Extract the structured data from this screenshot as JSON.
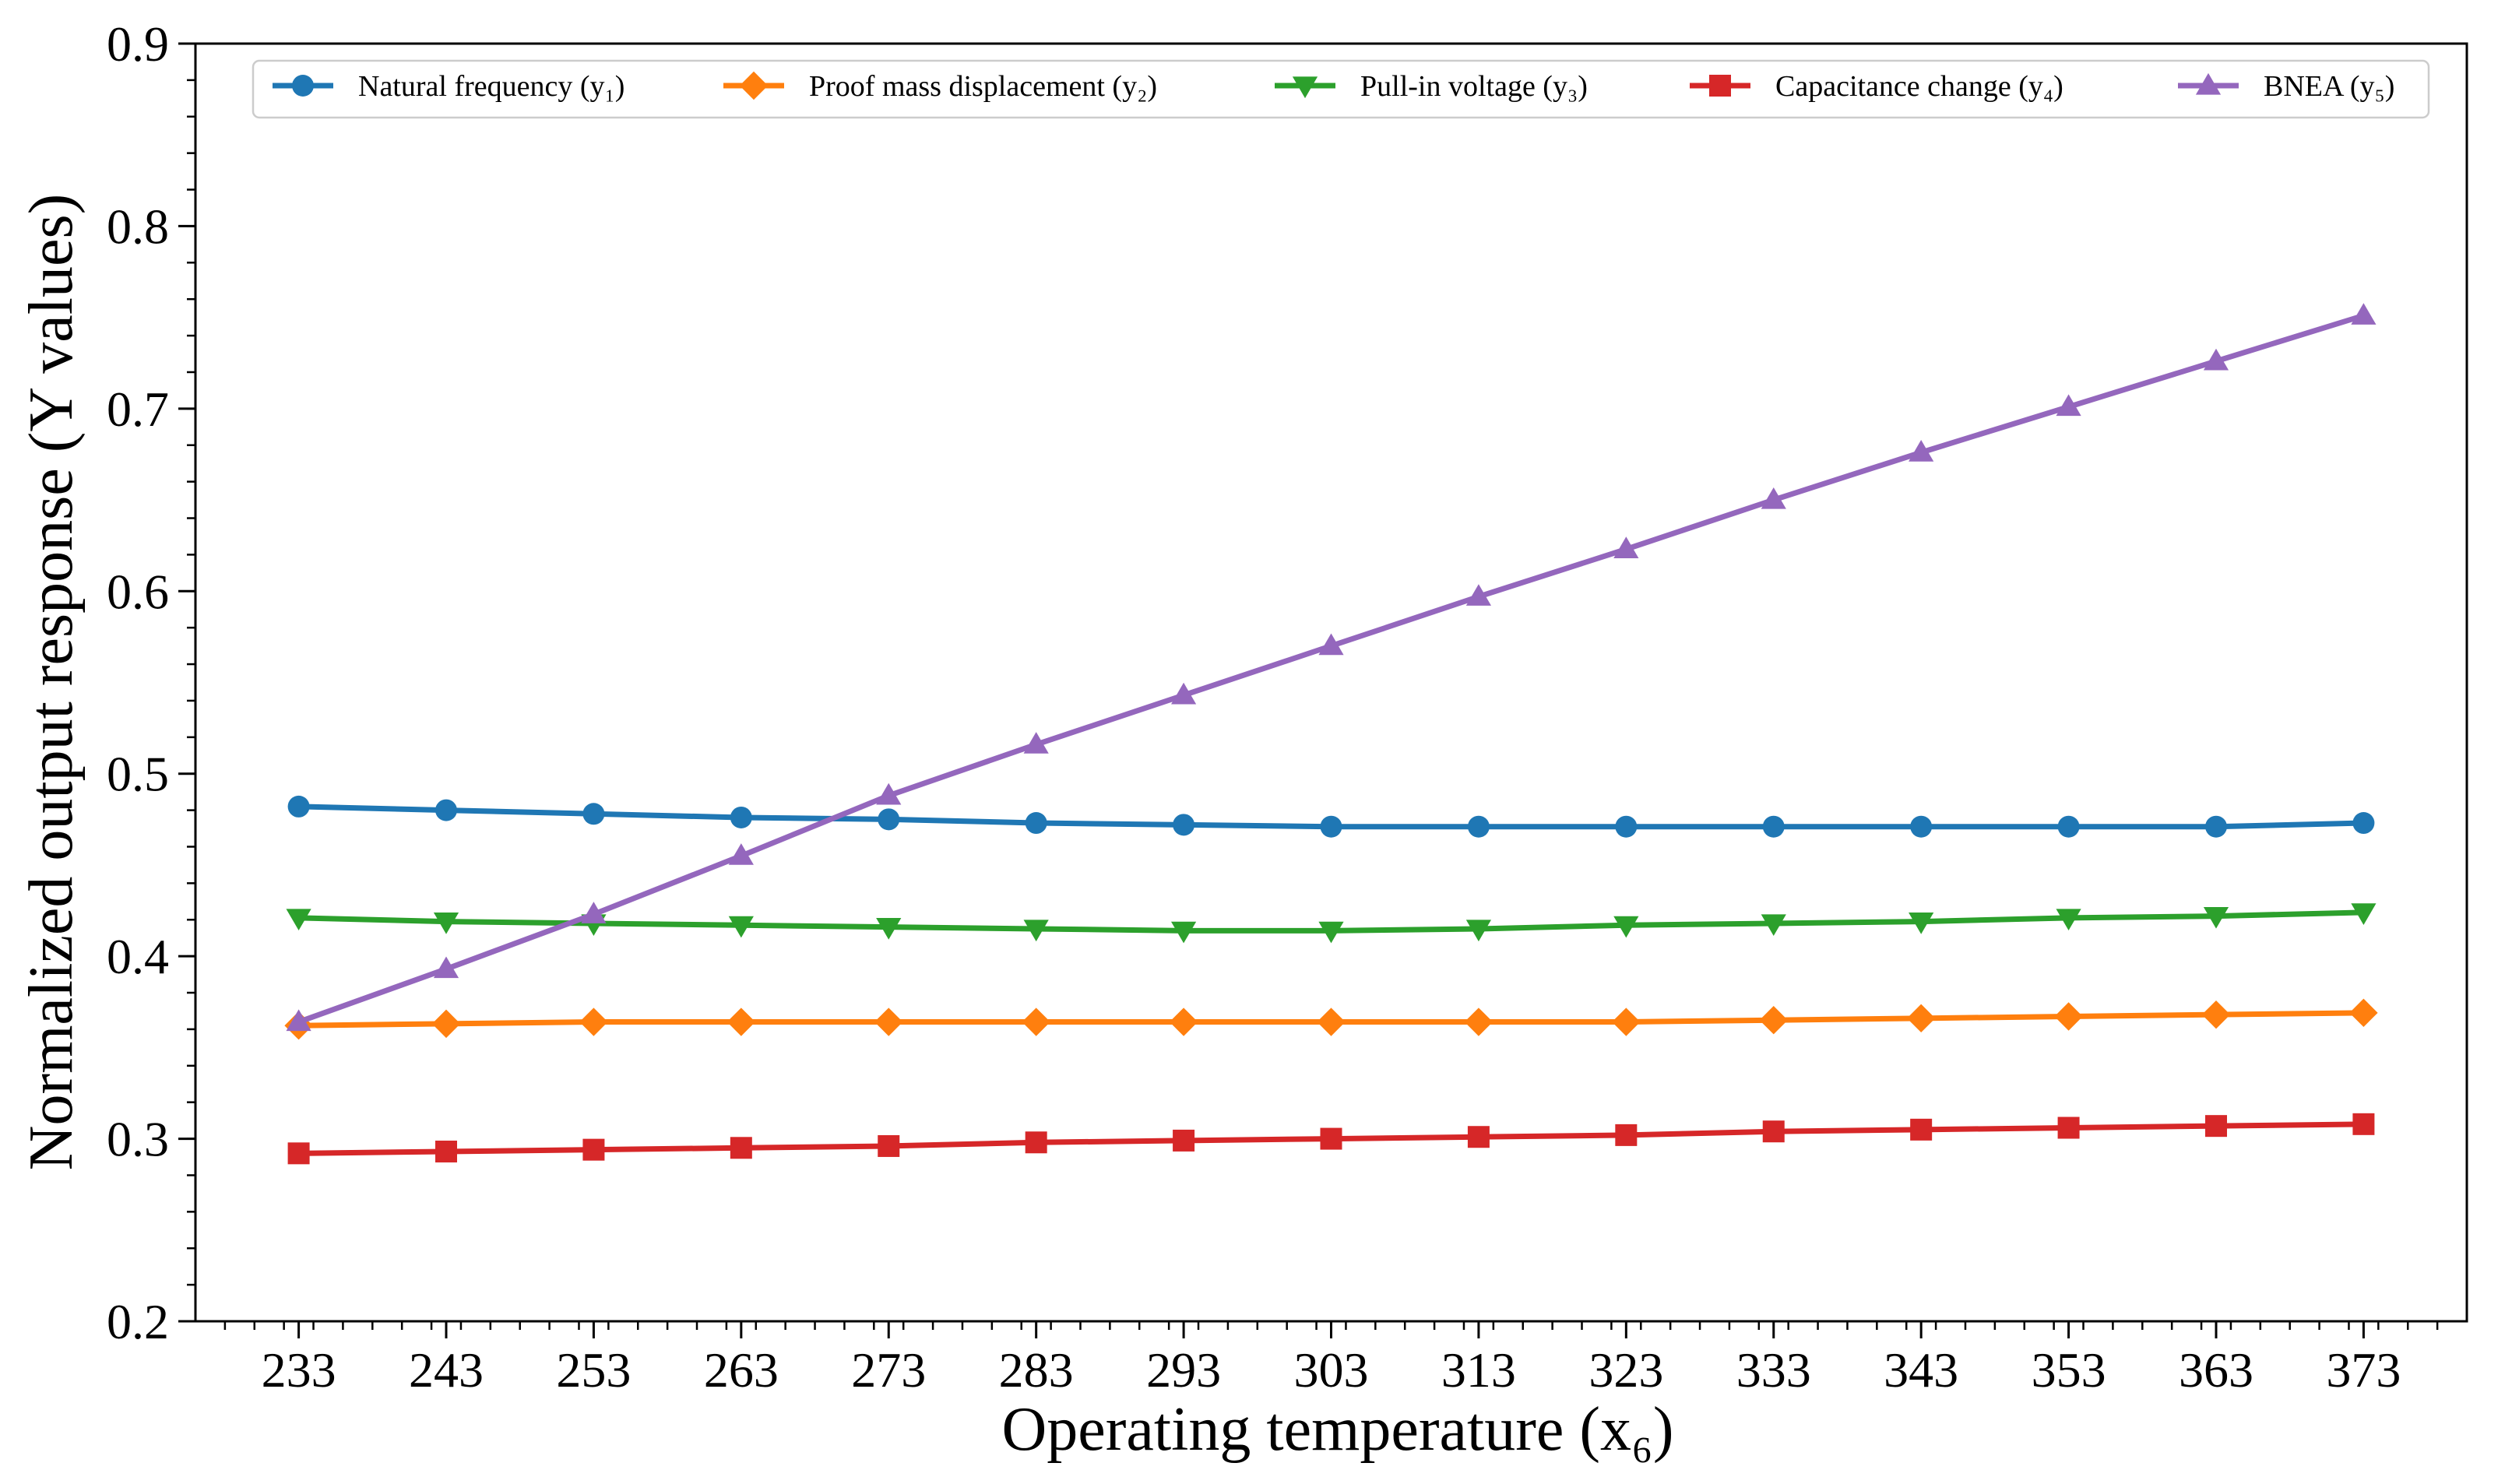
{
  "chart_data": {
    "type": "line",
    "title": "",
    "xlabel": "Operating temperature (x₆)",
    "ylabel": "Normalized output response (Y values)",
    "x": [
      233,
      243,
      253,
      263,
      273,
      283,
      293,
      303,
      313,
      323,
      333,
      343,
      353,
      363,
      373
    ],
    "xlim": [
      226,
      380
    ],
    "ylim": [
      0.2,
      0.9
    ],
    "yticks": [
      0.2,
      0.3,
      0.4,
      0.5,
      0.6,
      0.7,
      0.8,
      0.9
    ],
    "ytick_labels": [
      "0.2",
      "0.3",
      "0.4",
      "0.5",
      "0.6",
      "0.7",
      "0.8",
      "0.9"
    ],
    "xtick_labels": [
      "233",
      "243",
      "253",
      "263",
      "273",
      "283",
      "293",
      "303",
      "313",
      "323",
      "333",
      "343",
      "353",
      "363",
      "373"
    ],
    "grid": false,
    "legend_position": "top",
    "series": [
      {
        "name": "Natural frequency (y₁)",
        "color": "#1f77b4",
        "marker": "circle",
        "values": [
          0.482,
          0.48,
          0.478,
          0.476,
          0.475,
          0.473,
          0.472,
          0.471,
          0.471,
          0.471,
          0.471,
          0.471,
          0.471,
          0.471,
          0.473
        ]
      },
      {
        "name": "Proof mass displacement (y₂)",
        "color": "#ff7f0e",
        "marker": "diamond",
        "values": [
          0.362,
          0.363,
          0.364,
          0.364,
          0.364,
          0.364,
          0.364,
          0.364,
          0.364,
          0.364,
          0.365,
          0.366,
          0.367,
          0.368,
          0.369
        ]
      },
      {
        "name": "Pull-in voltage (y₃)",
        "color": "#2ca02c",
        "marker": "triangle-down",
        "values": [
          0.421,
          0.419,
          0.418,
          0.417,
          0.416,
          0.415,
          0.414,
          0.414,
          0.415,
          0.417,
          0.418,
          0.419,
          0.421,
          0.422,
          0.424
        ]
      },
      {
        "name": "Capacitance change (y₄)",
        "color": "#d62728",
        "marker": "square",
        "values": [
          0.292,
          0.293,
          0.294,
          0.295,
          0.296,
          0.298,
          0.299,
          0.3,
          0.301,
          0.302,
          0.304,
          0.305,
          0.306,
          0.307,
          0.308
        ]
      },
      {
        "name": "BNEA (y₅)",
        "color": "#9467bd",
        "marker": "triangle-up",
        "values": [
          0.364,
          0.393,
          0.423,
          0.455,
          0.488,
          0.516,
          0.543,
          0.57,
          0.597,
          0.623,
          0.65,
          0.676,
          0.701,
          0.726,
          0.751
        ]
      }
    ]
  }
}
